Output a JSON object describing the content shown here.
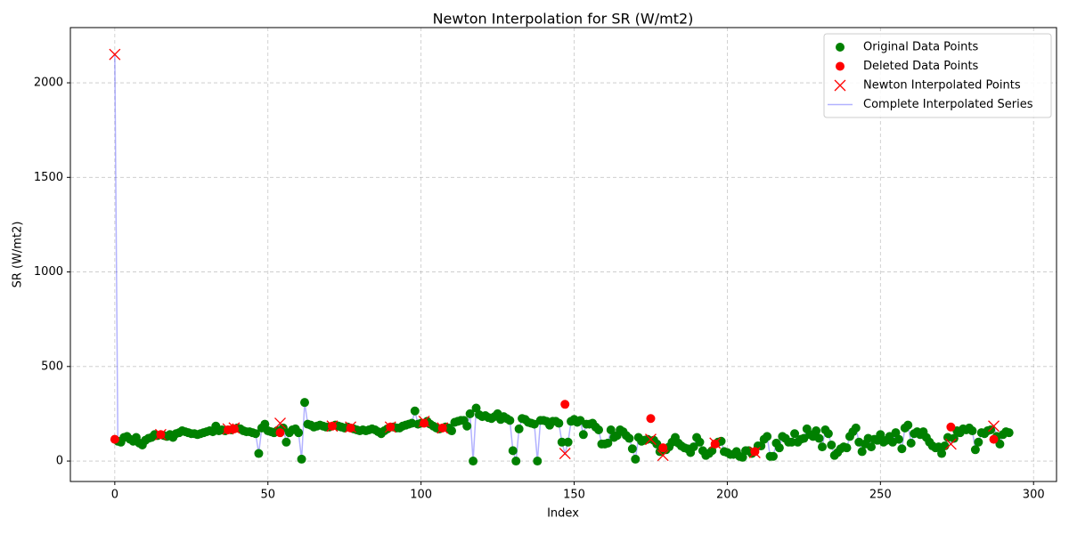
{
  "chart_data": {
    "type": "scatter",
    "title": "Newton Interpolation for SR (W/mt2)",
    "x_label": "Index",
    "y_label": "SR (W/mt2)",
    "xlim": [
      -14.5,
      307.5
    ],
    "ylim": [
      -108,
      2292
    ],
    "xticks": [
      0,
      50,
      100,
      150,
      200,
      250,
      300
    ],
    "yticks": [
      0,
      500,
      1000,
      1500,
      2000
    ],
    "grid": true,
    "legend": "upper right",
    "x": [
      0,
      1,
      2,
      3,
      4,
      5,
      6,
      7,
      8,
      9,
      10,
      11,
      12,
      13,
      14,
      15,
      16,
      17,
      18,
      19,
      20,
      21,
      22,
      23,
      24,
      25,
      26,
      27,
      28,
      29,
      30,
      31,
      32,
      33,
      34,
      35,
      36,
      37,
      38,
      39,
      40,
      41,
      42,
      43,
      44,
      45,
      46,
      47,
      48,
      49,
      50,
      51,
      52,
      53,
      54,
      55,
      56,
      57,
      58,
      59,
      60,
      61,
      62,
      63,
      64,
      65,
      66,
      67,
      68,
      69,
      70,
      71,
      72,
      73,
      74,
      75,
      76,
      77,
      78,
      79,
      80,
      81,
      82,
      83,
      84,
      85,
      86,
      87,
      88,
      89,
      90,
      91,
      92,
      93,
      94,
      95,
      96,
      97,
      98,
      99,
      100,
      101,
      102,
      103,
      104,
      105,
      106,
      107,
      108,
      109,
      110,
      111,
      112,
      113,
      114,
      115,
      116,
      117,
      118,
      119,
      120,
      121,
      122,
      123,
      124,
      125,
      126,
      127,
      128,
      129,
      130,
      131,
      132,
      133,
      134,
      135,
      136,
      137,
      138,
      139,
      140,
      141,
      142,
      143,
      144,
      145,
      146,
      147,
      148,
      149,
      150,
      151,
      152,
      153,
      154,
      155,
      156,
      157,
      158,
      159,
      160,
      161,
      162,
      163,
      164,
      165,
      166,
      167,
      168,
      169,
      170,
      171,
      172,
      173,
      174,
      175,
      176,
      177,
      178,
      179,
      180,
      181,
      182,
      183,
      184,
      185,
      186,
      187,
      188,
      189,
      190,
      191,
      192,
      193,
      194,
      195,
      196,
      197,
      198,
      199,
      200,
      201,
      202,
      203,
      204,
      205,
      206,
      207,
      208,
      209,
      210,
      211,
      212,
      213,
      214,
      215,
      216,
      217,
      218,
      219,
      220,
      221,
      222,
      223,
      224,
      225,
      226,
      227,
      228,
      229,
      230,
      231,
      232,
      233,
      234,
      235,
      236,
      237,
      238,
      239,
      240,
      241,
      242,
      243,
      244,
      245,
      246,
      247,
      248,
      249,
      250,
      251,
      252,
      253,
      254,
      255,
      256,
      257,
      258,
      259,
      260,
      261,
      262,
      263,
      264,
      265,
      266,
      267,
      268,
      269,
      270,
      271,
      272,
      273,
      274,
      275,
      276,
      277,
      278,
      279,
      280,
      281,
      282,
      283,
      284,
      285,
      286,
      287,
      288,
      289,
      290,
      291,
      292
    ],
    "series": [
      {
        "name": "Original Data Points",
        "color": "#008000",
        "marker": "circle",
        "values": [
          null,
          105,
          100,
          125,
          130,
          115,
          105,
          125,
          95,
          85,
          110,
          120,
          125,
          140,
          135,
          null,
          135,
          130,
          140,
          125,
          145,
          150,
          160,
          155,
          150,
          145,
          145,
          140,
          145,
          150,
          155,
          160,
          155,
          185,
          160,
          165,
          160,
          null,
          165,
          null,
          175,
          170,
          160,
          155,
          155,
          150,
          145,
          40,
          175,
          195,
          160,
          155,
          150,
          160,
          null,
          175,
          100,
          150,
          165,
          170,
          150,
          10,
          310,
          195,
          190,
          180,
          185,
          190,
          185,
          180,
          180,
          null,
          190,
          185,
          180,
          175,
          180,
          null,
          170,
          165,
          160,
          165,
          160,
          165,
          170,
          165,
          155,
          145,
          160,
          170,
          null,
          180,
          175,
          175,
          185,
          190,
          195,
          200,
          265,
          195,
          200,
          null,
          210,
          195,
          185,
          175,
          170,
          null,
          180,
          175,
          160,
          205,
          210,
          215,
          215,
          185,
          250,
          0,
          280,
          245,
          235,
          240,
          230,
          225,
          235,
          250,
          220,
          235,
          225,
          215,
          55,
          0,
          170,
          225,
          220,
          205,
          200,
          195,
          0,
          215,
          215,
          210,
          190,
          210,
          210,
          200,
          100,
          null,
          100,
          210,
          220,
          205,
          215,
          140,
          195,
          195,
          200,
          180,
          165,
          90,
          90,
          95,
          165,
          125,
          135,
          165,
          155,
          135,
          120,
          65,
          10,
          125,
          105,
          110,
          115,
          null,
          110,
          90,
          50,
          null,
          60,
          75,
          100,
          125,
          95,
          80,
          70,
          65,
          45,
          75,
          125,
          100,
          55,
          30,
          40,
          55,
          null,
          100,
          105,
          50,
          45,
          35,
          35,
          50,
          25,
          20,
          55,
          55,
          40,
          null,
          80,
          80,
          115,
          130,
          25,
          25,
          95,
          70,
          130,
          120,
          100,
          100,
          145,
          100,
          115,
          120,
          170,
          140,
          130,
          160,
          120,
          75,
          165,
          145,
          85,
          30,
          45,
          65,
          75,
          70,
          130,
          155,
          175,
          100,
          50,
          90,
          120,
          75,
          115,
          110,
          140,
          100,
          110,
          130,
          100,
          150,
          115,
          65,
          175,
          190,
          95,
          145,
          155,
          140,
          155,
          125,
          100,
          80,
          70,
          75,
          40,
          80,
          125,
          null,
          120,
          160,
          150,
          170,
          165,
          175,
          160,
          60,
          100,
          150,
          145,
          160,
          165,
          null,
          130,
          90,
          140,
          155,
          150
        ]
      },
      {
        "name": "Deleted Data Points",
        "color": "#ff0000",
        "marker": "circle",
        "x": [
          0,
          15,
          37,
          39,
          54,
          71,
          77,
          90,
          101,
          107,
          147,
          175,
          179,
          196,
          209,
          273,
          287
        ],
        "values": [
          115,
          140,
          165,
          170,
          150,
          185,
          175,
          180,
          200,
          175,
          300,
          225,
          70,
          90,
          50,
          180,
          115
        ]
      },
      {
        "name": "Newton Interpolated Points",
        "color": "#ff0000",
        "marker": "cross",
        "x": [
          0,
          15,
          37,
          39,
          54,
          71,
          77,
          90,
          101,
          107,
          147,
          175,
          179,
          196,
          209,
          273,
          287
        ],
        "values": [
          2150,
          140,
          170,
          175,
          200,
          185,
          180,
          180,
          210,
          175,
          40,
          115,
          30,
          95,
          45,
          90,
          185
        ]
      },
      {
        "name": "Complete Interpolated Series",
        "color": "#0000ff",
        "marker": "line",
        "values": [
          2150,
          105,
          100,
          125,
          130,
          115,
          105,
          125,
          95,
          85,
          110,
          120,
          125,
          140,
          135,
          140,
          135,
          130,
          140,
          125,
          145,
          150,
          160,
          155,
          150,
          145,
          145,
          140,
          145,
          150,
          155,
          160,
          155,
          185,
          160,
          165,
          160,
          170,
          165,
          175,
          175,
          170,
          160,
          155,
          155,
          150,
          145,
          40,
          175,
          195,
          160,
          155,
          150,
          160,
          200,
          175,
          100,
          150,
          165,
          170,
          150,
          10,
          310,
          195,
          190,
          180,
          185,
          190,
          185,
          180,
          180,
          185,
          190,
          185,
          180,
          175,
          180,
          180,
          170,
          165,
          160,
          165,
          160,
          165,
          170,
          165,
          155,
          145,
          160,
          170,
          180,
          180,
          175,
          175,
          185,
          190,
          195,
          200,
          265,
          195,
          200,
          210,
          210,
          195,
          185,
          175,
          170,
          175,
          180,
          175,
          160,
          205,
          210,
          215,
          215,
          185,
          250,
          0,
          280,
          245,
          235,
          240,
          230,
          225,
          235,
          250,
          220,
          235,
          225,
          215,
          55,
          0,
          170,
          225,
          220,
          205,
          200,
          195,
          0,
          215,
          215,
          210,
          190,
          210,
          210,
          200,
          100,
          40,
          100,
          210,
          220,
          205,
          215,
          140,
          195,
          195,
          200,
          180,
          165,
          90,
          90,
          95,
          165,
          125,
          135,
          165,
          155,
          135,
          120,
          65,
          10,
          125,
          105,
          110,
          115,
          115,
          110,
          90,
          50,
          30,
          60,
          75,
          100,
          125,
          95,
          80,
          70,
          65,
          45,
          75,
          125,
          100,
          55,
          30,
          40,
          55,
          95,
          100,
          105,
          50,
          45,
          35,
          35,
          50,
          25,
          20,
          55,
          55,
          40,
          45,
          80,
          80,
          115,
          130,
          25,
          25,
          95,
          70,
          130,
          120,
          100,
          100,
          145,
          100,
          115,
          120,
          170,
          140,
          130,
          160,
          120,
          75,
          165,
          145,
          85,
          30,
          45,
          65,
          75,
          70,
          130,
          155,
          175,
          100,
          50,
          90,
          120,
          75,
          115,
          110,
          140,
          100,
          110,
          130,
          100,
          150,
          115,
          65,
          175,
          190,
          95,
          145,
          155,
          140,
          155,
          125,
          100,
          80,
          70,
          75,
          40,
          80,
          125,
          90,
          120,
          160,
          150,
          170,
          165,
          175,
          160,
          60,
          100,
          150,
          145,
          160,
          165,
          185,
          130,
          90,
          140,
          155,
          150
        ]
      }
    ]
  }
}
